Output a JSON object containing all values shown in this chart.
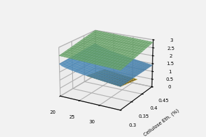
{
  "x_range": [
    20,
    35
  ],
  "y_range": [
    0.3,
    0.45
  ],
  "x_ticks": [
    20,
    25,
    30
  ],
  "y_ticks": [
    0.3,
    0.35,
    0.4,
    0.45
  ],
  "z_ticks": [
    0,
    0.5,
    1,
    1.5,
    2,
    2.5,
    3
  ],
  "zlim": [
    0,
    3
  ],
  "ylabel": "Cellulose Eth. (%)",
  "surface_green_color": "#7ab87a",
  "surface_blue_color": "#5599cc",
  "surface_yellow_color": "#e8c040",
  "grid_color": "#999999",
  "background_color": "#f2f2f2",
  "figsize": [
    3.0,
    2.0
  ],
  "dpi": 100,
  "elev": 20,
  "azim": -60
}
